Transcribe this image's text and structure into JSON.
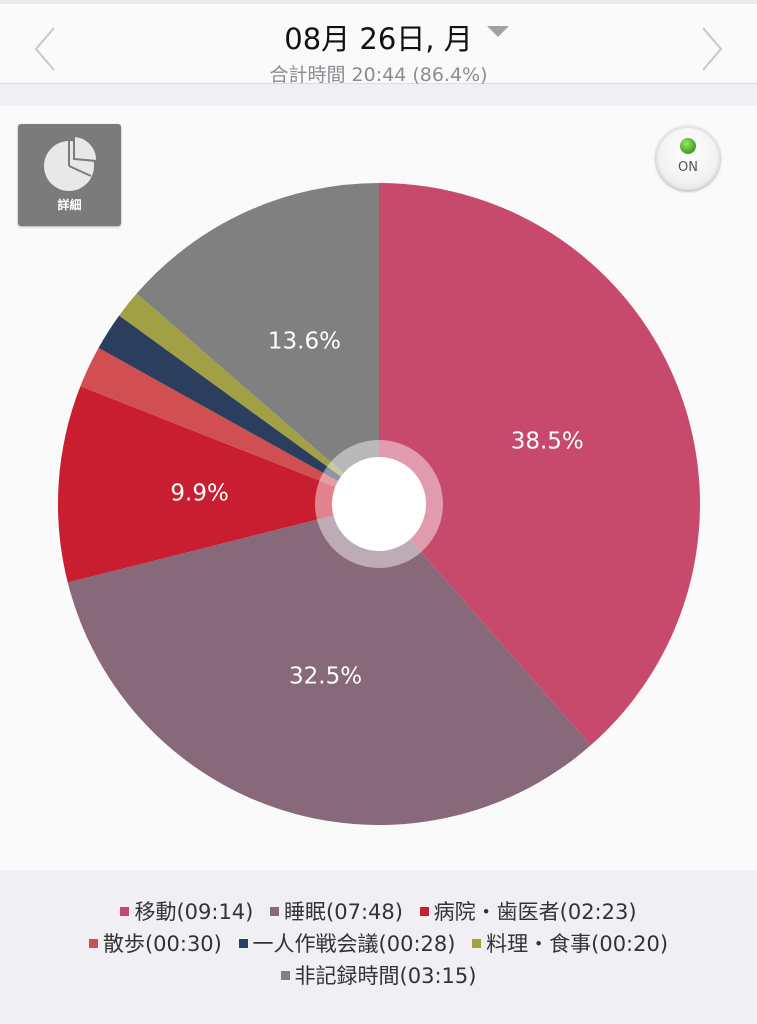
{
  "header": {
    "date": "08月 26日, 月",
    "subtitle": "合計時間 20:44 (86.4%)"
  },
  "detail_button": {
    "label": "詳細",
    "icon": "pie-chart-icon"
  },
  "toggle": {
    "label": "ON",
    "state": "on",
    "color": "#4aa82a"
  },
  "chart_data": {
    "type": "pie",
    "slices": [
      {
        "label": "移動",
        "time": "09:14",
        "value": 38.5,
        "color": "#c74a6c",
        "show_label": true
      },
      {
        "label": "睡眠",
        "time": "07:48",
        "value": 32.5,
        "color": "#886979",
        "show_label": true
      },
      {
        "label": "病院・歯医者",
        "time": "02:23",
        "value": 9.9,
        "color": "#c91d31",
        "show_label": true
      },
      {
        "label": "散歩",
        "time": "00:30",
        "value": 2.1,
        "color": "#d24f51",
        "show_label": false
      },
      {
        "label": "一人作戦会議",
        "time": "00:28",
        "value": 1.9,
        "color": "#2c3e5e",
        "show_label": false
      },
      {
        "label": "料理・食事",
        "time": "00:20",
        "value": 1.4,
        "color": "#a1a044",
        "show_label": false
      },
      {
        "label": "非記録時間",
        "time": "03:15",
        "value": 13.6,
        "color": "#808080",
        "show_label": true
      }
    ]
  },
  "legend": {
    "items": [
      "移動(09:14)",
      "睡眠(07:48)",
      "病院・歯医者(02:23)",
      "散歩(00:30)",
      "一人作戦会議(00:28)",
      "料理・食事(00:20)",
      "非記録時間(03:15)"
    ]
  }
}
